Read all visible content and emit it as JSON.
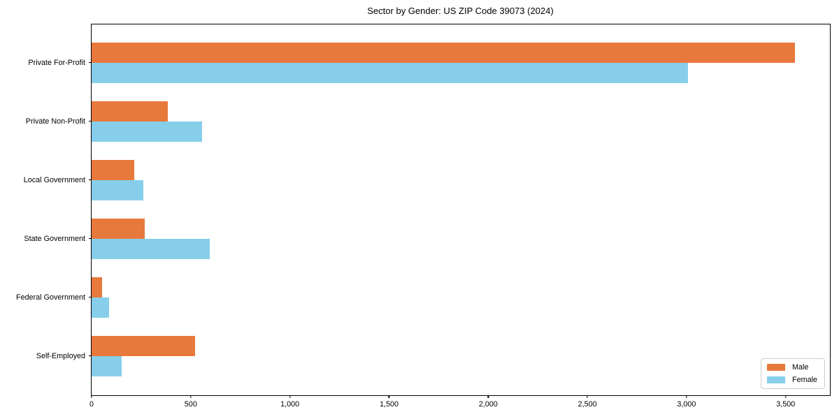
{
  "chart_data": {
    "type": "bar",
    "orientation": "horizontal",
    "title": "Sector by Gender: US ZIP Code 39073 (2024)",
    "categories": [
      "Private For-Profit",
      "Private Non-Profit",
      "Local Government",
      "State Government",
      "Federal Government",
      "Self-Employed"
    ],
    "series": [
      {
        "name": "Male",
        "color": "#e8793c",
        "values": [
          3546,
          386,
          214,
          268,
          54,
          522
        ]
      },
      {
        "name": "Female",
        "color": "#87ceeb",
        "values": [
          3009,
          558,
          260,
          596,
          87,
          150
        ]
      }
    ],
    "xlim": [
      0,
      3723
    ],
    "x_ticks": [
      0,
      500,
      1000,
      1500,
      2000,
      2500,
      3000,
      3500
    ],
    "x_tick_labels": [
      "0",
      "500",
      "1,000",
      "1,500",
      "2,000",
      "2,500",
      "3,000",
      "3,500"
    ],
    "ylabel": "",
    "xlabel": "",
    "grid": false,
    "axis_color": "#000000",
    "legend_position": "lower right"
  }
}
